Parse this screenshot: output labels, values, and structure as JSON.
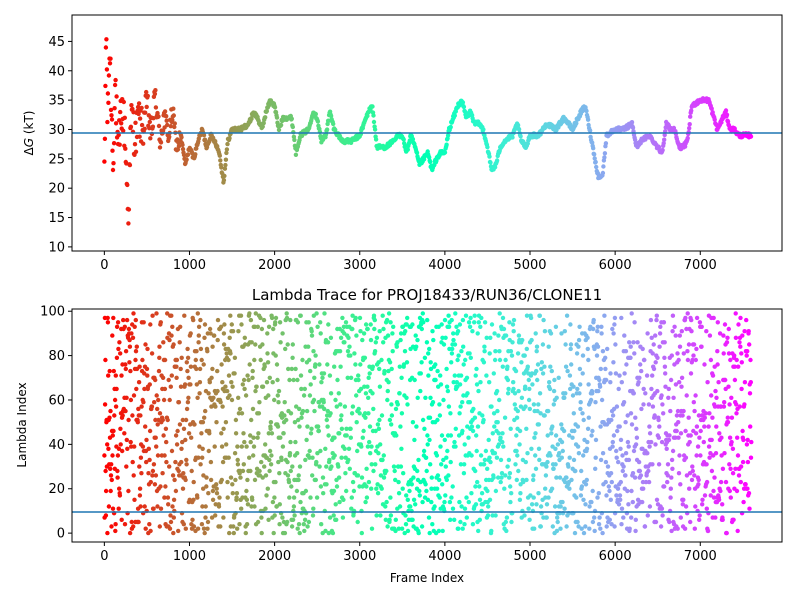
{
  "chart_data": [
    {
      "type": "scatter",
      "title": "",
      "xlabel": "",
      "ylabel": "ΔG (kT)",
      "ylabel_prefix": "Δ",
      "ylabel_italic": "G",
      "ylabel_suffix": " (kT)",
      "xlim": [
        -380,
        7960
      ],
      "ylim": [
        9.3,
        49.5
      ],
      "xticks": [
        0,
        1000,
        2000,
        3000,
        4000,
        5000,
        6000,
        7000
      ],
      "yticks": [
        10,
        15,
        20,
        25,
        30,
        35,
        40,
        45
      ],
      "hline": {
        "y": 29.4,
        "color": "#1f77b4"
      },
      "colormap": "rainbow (red at frame 0 to violet at frame 7600)",
      "series": [
        {
          "marker": "point",
          "x_range": [
            0,
            7600
          ],
          "trace": [
            [
              0,
              20
            ],
            [
              20,
              48
            ],
            [
              40,
              30
            ],
            [
              60,
              44
            ],
            [
              80,
              36
            ],
            [
              100,
              25
            ],
            [
              130,
              38
            ],
            [
              160,
              24
            ],
            [
              200,
              34
            ],
            [
              240,
              30
            ],
            [
              280,
              16
            ],
            [
              320,
              33
            ],
            [
              360,
              28
            ],
            [
              400,
              32
            ],
            [
              450,
              30
            ],
            [
              500,
              34
            ],
            [
              550,
              29
            ],
            [
              600,
              36
            ],
            [
              650,
              28
            ],
            [
              700,
              32
            ],
            [
              760,
              29
            ],
            [
              800,
              33
            ],
            [
              850,
              27
            ],
            [
              900,
              29
            ],
            [
              950,
              24
            ],
            [
              1000,
              27
            ],
            [
              1050,
              25
            ],
            [
              1100,
              28
            ],
            [
              1150,
              30
            ],
            [
              1200,
              27
            ],
            [
              1250,
              29
            ],
            [
              1300,
              28
            ],
            [
              1350,
              26
            ],
            [
              1400,
              21
            ],
            [
              1450,
              28
            ],
            [
              1500,
              30
            ],
            [
              1600,
              30
            ],
            [
              1700,
              31
            ],
            [
              1750,
              33
            ],
            [
              1800,
              32
            ],
            [
              1850,
              30
            ],
            [
              1900,
              33
            ],
            [
              1950,
              35
            ],
            [
              2000,
              34
            ],
            [
              2050,
              30
            ],
            [
              2100,
              32
            ],
            [
              2200,
              32
            ],
            [
              2250,
              26
            ],
            [
              2300,
              29
            ],
            [
              2400,
              30
            ],
            [
              2450,
              33
            ],
            [
              2500,
              32
            ],
            [
              2550,
              28
            ],
            [
              2600,
              29
            ],
            [
              2650,
              33
            ],
            [
              2700,
              30
            ],
            [
              2800,
              28
            ],
            [
              2900,
              28
            ],
            [
              3000,
              29
            ],
            [
              3050,
              31
            ],
            [
              3100,
              33
            ],
            [
              3150,
              34
            ],
            [
              3200,
              27
            ],
            [
              3300,
              27
            ],
            [
              3400,
              28
            ],
            [
              3450,
              29
            ],
            [
              3500,
              29
            ],
            [
              3550,
              26
            ],
            [
              3600,
              29
            ],
            [
              3650,
              27
            ],
            [
              3700,
              24
            ],
            [
              3750,
              25
            ],
            [
              3800,
              26
            ],
            [
              3850,
              23
            ],
            [
              3900,
              25
            ],
            [
              3950,
              26
            ],
            [
              4000,
              26
            ],
            [
              4050,
              30
            ],
            [
              4100,
              32
            ],
            [
              4150,
              34
            ],
            [
              4200,
              35
            ],
            [
              4250,
              32
            ],
            [
              4300,
              33
            ],
            [
              4350,
              31
            ],
            [
              4400,
              31
            ],
            [
              4450,
              30
            ],
            [
              4500,
              27
            ],
            [
              4550,
              23
            ],
            [
              4600,
              24
            ],
            [
              4650,
              27
            ],
            [
              4700,
              28
            ],
            [
              4800,
              29
            ],
            [
              4850,
              31
            ],
            [
              4900,
              28
            ],
            [
              4950,
              27
            ],
            [
              5000,
              29
            ],
            [
              5100,
              29
            ],
            [
              5200,
              31
            ],
            [
              5300,
              30
            ],
            [
              5400,
              32
            ],
            [
              5500,
              30
            ],
            [
              5600,
              33
            ],
            [
              5650,
              34
            ],
            [
              5700,
              30
            ],
            [
              5750,
              26
            ],
            [
              5800,
              22
            ],
            [
              5850,
              22
            ],
            [
              5900,
              29
            ],
            [
              6000,
              30
            ],
            [
              6100,
              30
            ],
            [
              6200,
              31
            ],
            [
              6250,
              27
            ],
            [
              6300,
              28
            ],
            [
              6400,
              29
            ],
            [
              6500,
              27
            ],
            [
              6550,
              26
            ],
            [
              6600,
              31
            ],
            [
              6650,
              30
            ],
            [
              6700,
              30
            ],
            [
              6750,
              27
            ],
            [
              6800,
              27
            ],
            [
              6850,
              28
            ],
            [
              6900,
              34
            ],
            [
              7000,
              35
            ],
            [
              7100,
              35
            ],
            [
              7200,
              30
            ],
            [
              7300,
              33
            ],
            [
              7350,
              30
            ],
            [
              7400,
              30
            ],
            [
              7450,
              29
            ],
            [
              7500,
              29
            ],
            [
              7600,
              29
            ]
          ]
        }
      ]
    },
    {
      "type": "scatter",
      "title": "Lambda Trace for PROJ18433/RUN36/CLONE11",
      "xlabel": "Frame Index",
      "ylabel": "Lambda Index",
      "xlim": [
        -380,
        7960
      ],
      "ylim": [
        -4,
        101
      ],
      "xticks": [
        0,
        1000,
        2000,
        3000,
        4000,
        5000,
        6000,
        7000
      ],
      "yticks": [
        0,
        20,
        40,
        60,
        80,
        100
      ],
      "hline": {
        "y": 9.5,
        "color": "#1f77b4"
      },
      "colormap": "rainbow (red at frame 0 to violet at frame 7600)",
      "series": [
        {
          "marker": "point",
          "x_range": [
            0,
            7600
          ],
          "y_range": [
            0,
            99
          ],
          "distribution": "lambda indices spread uniformly over 0-99 across all frames"
        }
      ]
    }
  ]
}
